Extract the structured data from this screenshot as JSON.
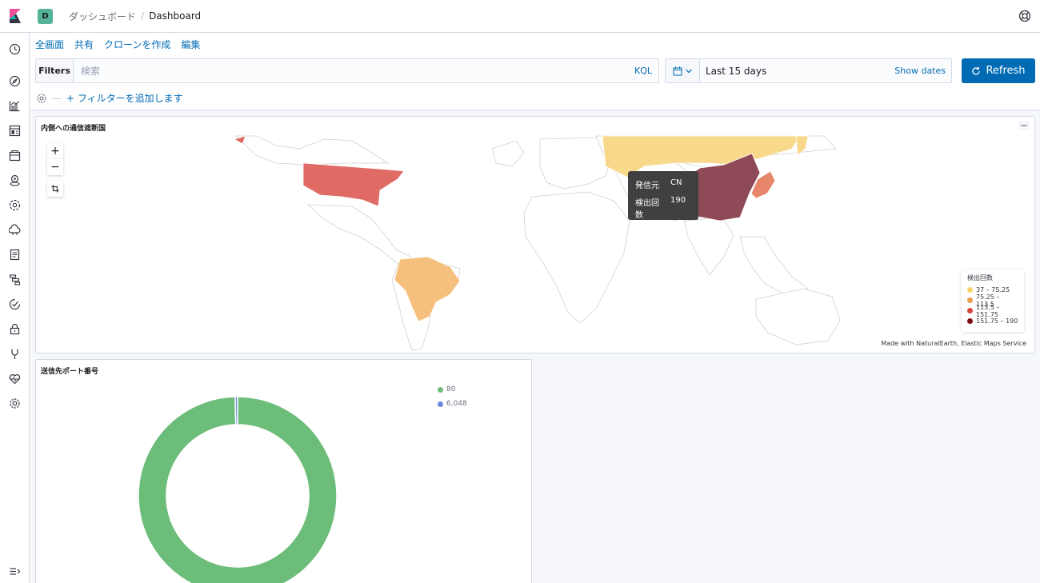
{
  "header": {
    "space_initial": "D",
    "breadcrumb_parent": "ダッシュボード",
    "breadcrumb_current": "Dashboard"
  },
  "sidebar": {
    "items": [
      "recently-viewed-icon",
      "discover-icon",
      "visualize-icon",
      "dashboard-icon",
      "canvas-icon",
      "maps-icon",
      "machine-learning-icon",
      "infrastructure-icon",
      "logs-icon",
      "apm-icon",
      "uptime-icon",
      "siem-icon",
      "dev-tools-icon",
      "monitoring-icon",
      "management-icon",
      "collapse-icon"
    ]
  },
  "top_links": [
    "全画面",
    "共有",
    "クローンを作成",
    "編集"
  ],
  "query_bar": {
    "filters_label": "Filters",
    "search_placeholder": "検索",
    "kql_label": "KQL"
  },
  "date_picker": {
    "range_label": "Last 15 days",
    "show_dates_label": "Show dates"
  },
  "refresh_label": "Refresh",
  "filter_row": {
    "separator": "—",
    "add_filter_label": "+ フィルターを追加します"
  },
  "colors": {
    "accent": "#006bb4",
    "bin_1": "#f8d98b",
    "bin_2": "#f5c07d",
    "bin_3": "#e06b65",
    "bin_4": "#7c1d1f"
  },
  "map_panel": {
    "title": "内側への通信遮断国",
    "tooltip": {
      "origin_key": "発信元",
      "origin_value": "CN",
      "count_key": "検出回数",
      "count_value": "190"
    },
    "legend": {
      "title": "検出回数",
      "items": [
        {
          "label": "37 – 75.25",
          "color": "#f6d36f"
        },
        {
          "label": "75.25 – 113.5",
          "color": "#e8a04c"
        },
        {
          "label": "113.5 – 151.75",
          "color": "#d9443a"
        },
        {
          "label": "151.75 – 190",
          "color": "#7a0c12"
        }
      ]
    },
    "attribution": "Made with NaturalEarth, Elastic Maps Service"
  },
  "donut_panel": {
    "title": "送信先ポート番号",
    "legend": [
      {
        "label": "80",
        "color": "#6dbd7a"
      },
      {
        "label": "6,048",
        "color": "#6f87d8"
      }
    ]
  },
  "chart_data": {
    "type": "pie",
    "title": "送信先ポート番号",
    "categories": [
      "80",
      "6,048"
    ],
    "values": [
      99.6,
      0.4
    ]
  }
}
